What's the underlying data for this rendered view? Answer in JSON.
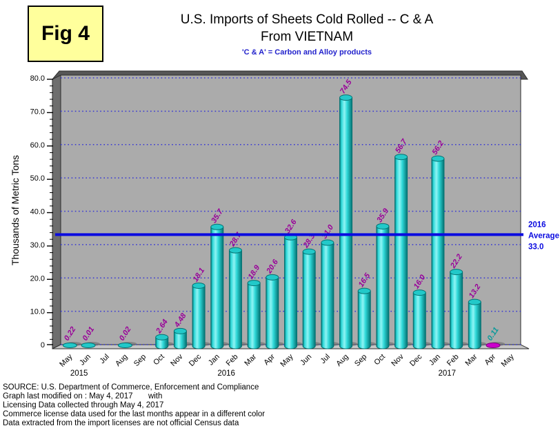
{
  "figure_label": "Fig 4",
  "title": {
    "line1": "U.S. Imports of Sheets Cold Rolled -- C & A",
    "line2": "From VIETNAM",
    "subtitle": "'C & A' = Carbon and Alloy products"
  },
  "y_axis": {
    "title": "Thousands of Metric Tons",
    "tick_labels": [
      "0",
      "10.0",
      "20.0",
      "30.0",
      "40.0",
      "50.0",
      "60.0",
      "70.0",
      "80.0"
    ]
  },
  "chart_data": {
    "type": "bar",
    "title": "U.S. Imports of Sheets Cold Rolled -- C & A From VIETNAM",
    "ylabel": "Thousands of Metric Tons",
    "ylim": [
      0,
      80
    ],
    "y_major_step": 10,
    "y_minor_step": 2,
    "grid": "horizontal-dotted",
    "categories": [
      "May",
      "Jun",
      "Jul",
      "Aug",
      "Sep",
      "Oct",
      "Nov",
      "Dec",
      "Jan",
      "Feb",
      "Mar",
      "Apr",
      "May",
      "Jun",
      "Jul",
      "Aug",
      "Sep",
      "Oct",
      "Nov",
      "Dec",
      "Jan",
      "Feb",
      "Mar",
      "Apr",
      "May"
    ],
    "values": [
      0.22,
      0.01,
      null,
      0.02,
      null,
      2.64,
      4.48,
      18.1,
      35.7,
      28.7,
      18.9,
      20.6,
      32.6,
      28.3,
      31.0,
      74.5,
      16.5,
      35.9,
      56.7,
      16.0,
      56.2,
      22.2,
      13.2,
      0.11,
      null
    ],
    "bar_labels": [
      "0.22",
      "0.01",
      null,
      "0.02",
      null,
      "2.64",
      "4.48",
      "18.1",
      "35.7",
      "28.7",
      "18.9",
      "20.6",
      "32.6",
      "28.3",
      "31.0",
      "74.5",
      "16.5",
      "35.9",
      "56.7",
      "16.0",
      "56.2",
      "22.2",
      "13.2",
      "0.11",
      null
    ],
    "year_labels": [
      {
        "label": "2015",
        "slot": 1
      },
      {
        "label": "2016",
        "slot": 9
      },
      {
        "label": "2017",
        "slot": 21
      }
    ],
    "license_bar_index": 23,
    "average_line": {
      "value": 33.0,
      "label_lines": [
        "2016",
        "Average",
        "33.0"
      ],
      "color": "#0B0BE0"
    },
    "colors": {
      "bar_edge_dark": "#047272",
      "bar_mid": "#2ED8D8",
      "bar_highlight": "#8FF4F4",
      "bar_top": "#22C9C9",
      "bar_license": "#CC00CC",
      "bar_license_edge": "#7A007A",
      "bar_label": "#990099",
      "license_label": "#0A9A9A",
      "gridline": "#3434D6",
      "wall": "#ABABAB",
      "wall_side": "#6E6E6E",
      "wall_top_band": "#565656",
      "floor": "#C6C6C6",
      "outline": "#2E2E2E",
      "tick_text": "#000000"
    }
  },
  "footer": {
    "lines": [
      "SOURCE: U.S. Department of Commerce, Enforcement and Compliance",
      "Graph last modified on : May 4, 2017       with",
      "Licensing Data collected through May 4, 2017",
      "Commerce license data used for the last months appear in a different color",
      "Data extracted from the import licenses are not official Census data"
    ]
  }
}
